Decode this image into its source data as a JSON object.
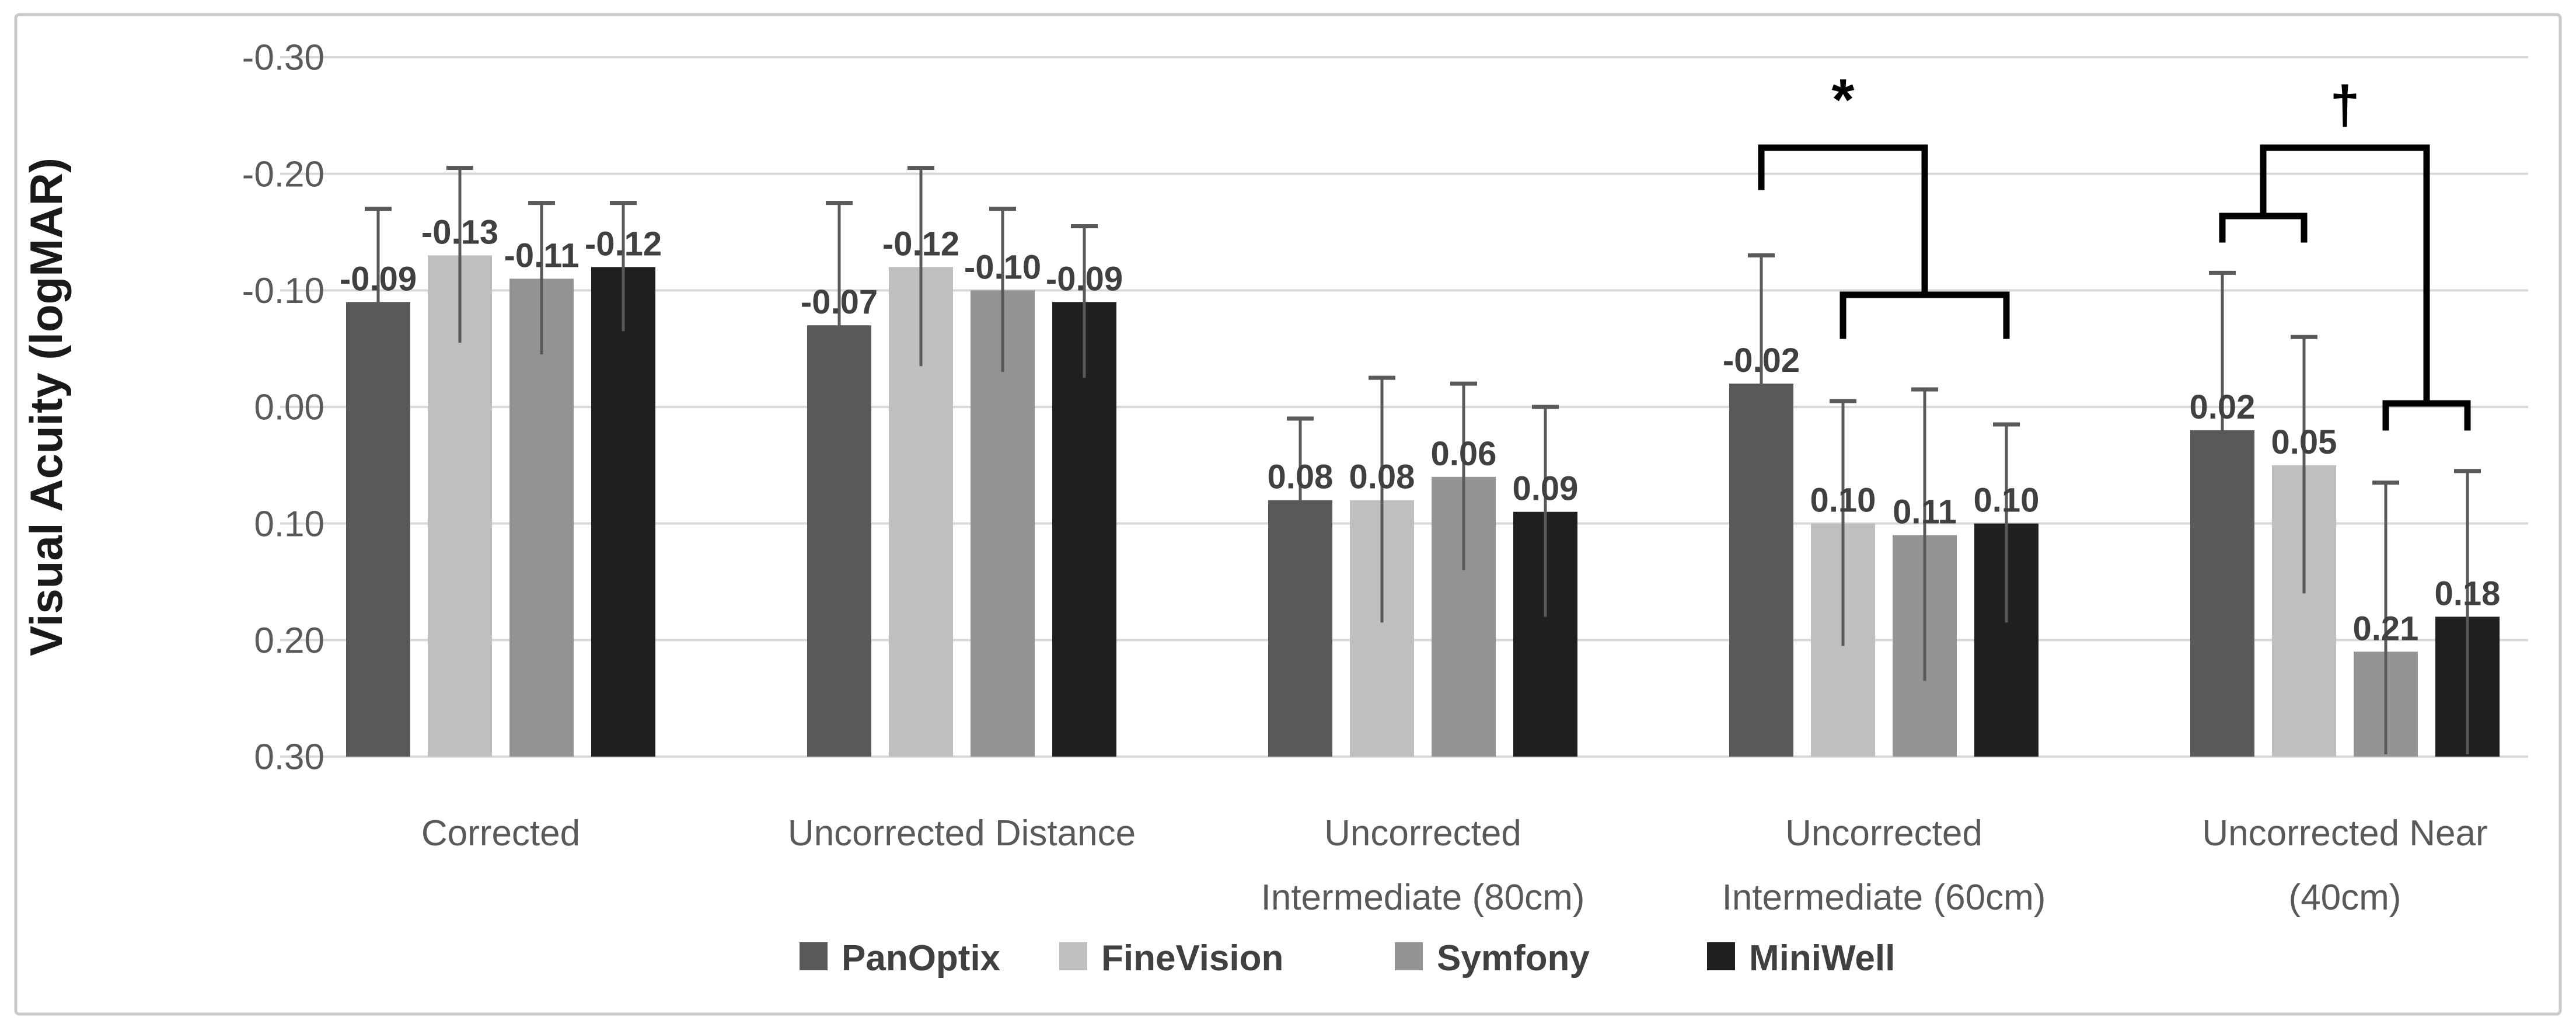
{
  "chart_data": {
    "type": "bar",
    "title": "",
    "ylabel": "Visual Acuity (logMAR)",
    "xlabel": "",
    "grid": true,
    "legend_position": "bottom",
    "y_axis": {
      "min": -0.3,
      "max": 0.3,
      "step": 0.1,
      "inverted": true,
      "tick_labels": [
        "-0.30",
        "-0.20",
        "-0.10",
        "0.00",
        "0.10",
        "0.20",
        "0.30"
      ]
    },
    "categories": [
      "Corrected",
      "Uncorrected Distance",
      "Uncorrected Intermediate (80cm)",
      "Uncorrected Intermediate (60cm)",
      "Uncorrected Near (40cm)"
    ],
    "category_label_lines": [
      [
        "Corrected"
      ],
      [
        "Uncorrected Distance"
      ],
      [
        "Uncorrected",
        "Intermediate (80cm)"
      ],
      [
        "Uncorrected",
        "Intermediate (60cm)"
      ],
      [
        "Uncorrected Near",
        "(40cm)"
      ]
    ],
    "series": [
      {
        "name": "PanOptix",
        "color": "#595959",
        "values": [
          -0.09,
          -0.07,
          0.08,
          -0.02,
          0.02
        ],
        "errors": [
          0.08,
          0.105,
          0.07,
          0.11,
          0.135
        ]
      },
      {
        "name": "FineVision",
        "color": "#bfbfbf",
        "values": [
          -0.13,
          -0.12,
          0.08,
          0.1,
          0.05
        ],
        "errors": [
          0.075,
          0.085,
          0.105,
          0.105,
          0.11
        ]
      },
      {
        "name": "Symfony",
        "color": "#949494",
        "values": [
          -0.11,
          -0.1,
          0.06,
          0.11,
          0.21
        ],
        "errors": [
          0.065,
          0.07,
          0.08,
          0.125,
          0.145
        ]
      },
      {
        "name": "MiniWell",
        "color": "#1f1f1f",
        "values": [
          -0.12,
          -0.09,
          0.09,
          0.1,
          0.18
        ],
        "errors": [
          0.055,
          0.065,
          0.09,
          0.085,
          0.125
        ]
      }
    ],
    "data_labels": [
      [
        "-0.09",
        "-0.07",
        "0.08",
        "-0.02",
        "0.02"
      ],
      [
        "-0.13",
        "-0.12",
        "0.08",
        "0.10",
        "0.05"
      ],
      [
        "-0.11",
        "-0.10",
        "0.06",
        "0.11",
        "0.21"
      ],
      [
        "-0.12",
        "-0.09",
        "0.09",
        "0.10",
        "0.18"
      ]
    ],
    "annotations": [
      {
        "symbol": "*",
        "group": 3,
        "type": "one-vs-group",
        "from_bars": [
          0
        ],
        "to_bars": [
          1,
          2,
          3
        ]
      },
      {
        "symbol": "†",
        "group": 4,
        "type": "group-vs-group",
        "from_bars": [
          0,
          1
        ],
        "to_bars": [
          2,
          3
        ]
      }
    ],
    "colors": {
      "gridline": "#d9d9d9",
      "axis_text": "#595959",
      "data_label_text": "#404040",
      "error_bar": "#595959",
      "bracket": "#000000",
      "border": "#c9c9c9",
      "background": "#ffffff"
    }
  }
}
